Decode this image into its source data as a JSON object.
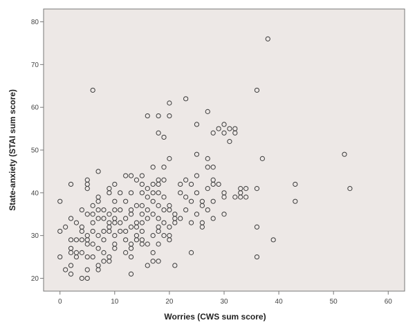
{
  "chart_data": {
    "type": "scatter",
    "title": "",
    "xlabel": "Worries (CWS sum score)",
    "ylabel": "State-anxiety (STAI sum score)",
    "xlim": [
      -3,
      63
    ],
    "ylim": [
      17,
      83
    ],
    "xticks": [
      0,
      10,
      20,
      30,
      40,
      50,
      60
    ],
    "yticks": [
      20,
      30,
      40,
      50,
      60,
      70,
      80
    ],
    "grid": false,
    "colors": {
      "plot_bg": "#ede8e6",
      "marker": "#3a3a3a",
      "axis": "#777777"
    },
    "points": [
      [
        0,
        38
      ],
      [
        0,
        31
      ],
      [
        0,
        25
      ],
      [
        1,
        32
      ],
      [
        1,
        22
      ],
      [
        2,
        42
      ],
      [
        2,
        34
      ],
      [
        2,
        29
      ],
      [
        2,
        27
      ],
      [
        2,
        26
      ],
      [
        2,
        23
      ],
      [
        2,
        21
      ],
      [
        3,
        33
      ],
      [
        3,
        29
      ],
      [
        3,
        26
      ],
      [
        3,
        25
      ],
      [
        4,
        36
      ],
      [
        4,
        32
      ],
      [
        4,
        31
      ],
      [
        4,
        29
      ],
      [
        4,
        26
      ],
      [
        4,
        20
      ],
      [
        5,
        43
      ],
      [
        5,
        42
      ],
      [
        5,
        41
      ],
      [
        5,
        35
      ],
      [
        5,
        30
      ],
      [
        5,
        29
      ],
      [
        5,
        28
      ],
      [
        5,
        25
      ],
      [
        5,
        22
      ],
      [
        5,
        20
      ],
      [
        6,
        64
      ],
      [
        6,
        37
      ],
      [
        6,
        35
      ],
      [
        6,
        33
      ],
      [
        6,
        31
      ],
      [
        6,
        28
      ],
      [
        6,
        25
      ],
      [
        7,
        45
      ],
      [
        7,
        39
      ],
      [
        7,
        38
      ],
      [
        7,
        36
      ],
      [
        7,
        34
      ],
      [
        7,
        30
      ],
      [
        7,
        27
      ],
      [
        7,
        23
      ],
      [
        7,
        22
      ],
      [
        8,
        36
      ],
      [
        8,
        34
      ],
      [
        8,
        31
      ],
      [
        8,
        29
      ],
      [
        8,
        26
      ],
      [
        8,
        24
      ],
      [
        9,
        41
      ],
      [
        9,
        40
      ],
      [
        9,
        35
      ],
      [
        9,
        33
      ],
      [
        9,
        32
      ],
      [
        9,
        31
      ],
      [
        9,
        25
      ],
      [
        9,
        24
      ],
      [
        10,
        42
      ],
      [
        10,
        38
      ],
      [
        10,
        36
      ],
      [
        10,
        34
      ],
      [
        10,
        33
      ],
      [
        10,
        30
      ],
      [
        10,
        28
      ],
      [
        10,
        27
      ],
      [
        11,
        40
      ],
      [
        11,
        36
      ],
      [
        11,
        33
      ],
      [
        11,
        31
      ],
      [
        12,
        44
      ],
      [
        12,
        38
      ],
      [
        12,
        34
      ],
      [
        12,
        31
      ],
      [
        12,
        29
      ],
      [
        12,
        26
      ],
      [
        13,
        44
      ],
      [
        13,
        40
      ],
      [
        13,
        36
      ],
      [
        13,
        35
      ],
      [
        13,
        32
      ],
      [
        13,
        28
      ],
      [
        13,
        27
      ],
      [
        13,
        25
      ],
      [
        13,
        21
      ],
      [
        14,
        43
      ],
      [
        14,
        37
      ],
      [
        14,
        33
      ],
      [
        14,
        32
      ],
      [
        14,
        30
      ],
      [
        14,
        29
      ],
      [
        15,
        44
      ],
      [
        15,
        42
      ],
      [
        15,
        40
      ],
      [
        15,
        37
      ],
      [
        15,
        35
      ],
      [
        15,
        33
      ],
      [
        15,
        31
      ],
      [
        15,
        29
      ],
      [
        15,
        28
      ],
      [
        16,
        58
      ],
      [
        16,
        41
      ],
      [
        16,
        39
      ],
      [
        16,
        36
      ],
      [
        16,
        34
      ],
      [
        16,
        28
      ],
      [
        16,
        23
      ],
      [
        17,
        46
      ],
      [
        17,
        42
      ],
      [
        17,
        40
      ],
      [
        17,
        38
      ],
      [
        17,
        35
      ],
      [
        17,
        30
      ],
      [
        17,
        26
      ],
      [
        17,
        24
      ],
      [
        18,
        58
      ],
      [
        18,
        54
      ],
      [
        18,
        43
      ],
      [
        18,
        42
      ],
      [
        18,
        40
      ],
      [
        18,
        37
      ],
      [
        18,
        34
      ],
      [
        18,
        32
      ],
      [
        18,
        31
      ],
      [
        18,
        28
      ],
      [
        18,
        24
      ],
      [
        19,
        53
      ],
      [
        19,
        46
      ],
      [
        19,
        43
      ],
      [
        19,
        39
      ],
      [
        19,
        36
      ],
      [
        19,
        33
      ],
      [
        19,
        30
      ],
      [
        20,
        61
      ],
      [
        20,
        58
      ],
      [
        20,
        48
      ],
      [
        20,
        37
      ],
      [
        20,
        36
      ],
      [
        20,
        32
      ],
      [
        20,
        30
      ],
      [
        20,
        29
      ],
      [
        21,
        35
      ],
      [
        21,
        34
      ],
      [
        21,
        33
      ],
      [
        21,
        23
      ],
      [
        22,
        42
      ],
      [
        22,
        40
      ],
      [
        22,
        34
      ],
      [
        23,
        62
      ],
      [
        23,
        43
      ],
      [
        23,
        39
      ],
      [
        23,
        36
      ],
      [
        24,
        42
      ],
      [
        24,
        38
      ],
      [
        24,
        33
      ],
      [
        24,
        26
      ],
      [
        25,
        56
      ],
      [
        25,
        49
      ],
      [
        25,
        44
      ],
      [
        25,
        40
      ],
      [
        25,
        35
      ],
      [
        26,
        38
      ],
      [
        26,
        37
      ],
      [
        26,
        33
      ],
      [
        26,
        32
      ],
      [
        27,
        59
      ],
      [
        27,
        48
      ],
      [
        27,
        46
      ],
      [
        27,
        41
      ],
      [
        27,
        36
      ],
      [
        28,
        54
      ],
      [
        28,
        46
      ],
      [
        28,
        43
      ],
      [
        28,
        42
      ],
      [
        28,
        38
      ],
      [
        28,
        34
      ],
      [
        29,
        55
      ],
      [
        29,
        42
      ],
      [
        30,
        56
      ],
      [
        30,
        54
      ],
      [
        30,
        40
      ],
      [
        30,
        39
      ],
      [
        30,
        35
      ],
      [
        31,
        55
      ],
      [
        31,
        52
      ],
      [
        32,
        55
      ],
      [
        32,
        54
      ],
      [
        32,
        39
      ],
      [
        33,
        41
      ],
      [
        33,
        40
      ],
      [
        33,
        39
      ],
      [
        34,
        41
      ],
      [
        34,
        39
      ],
      [
        36,
        64
      ],
      [
        36,
        41
      ],
      [
        36,
        32
      ],
      [
        36,
        25
      ],
      [
        37,
        48
      ],
      [
        38,
        76
      ],
      [
        39,
        29
      ],
      [
        43,
        42
      ],
      [
        43,
        38
      ],
      [
        52,
        49
      ],
      [
        53,
        41
      ]
    ]
  }
}
